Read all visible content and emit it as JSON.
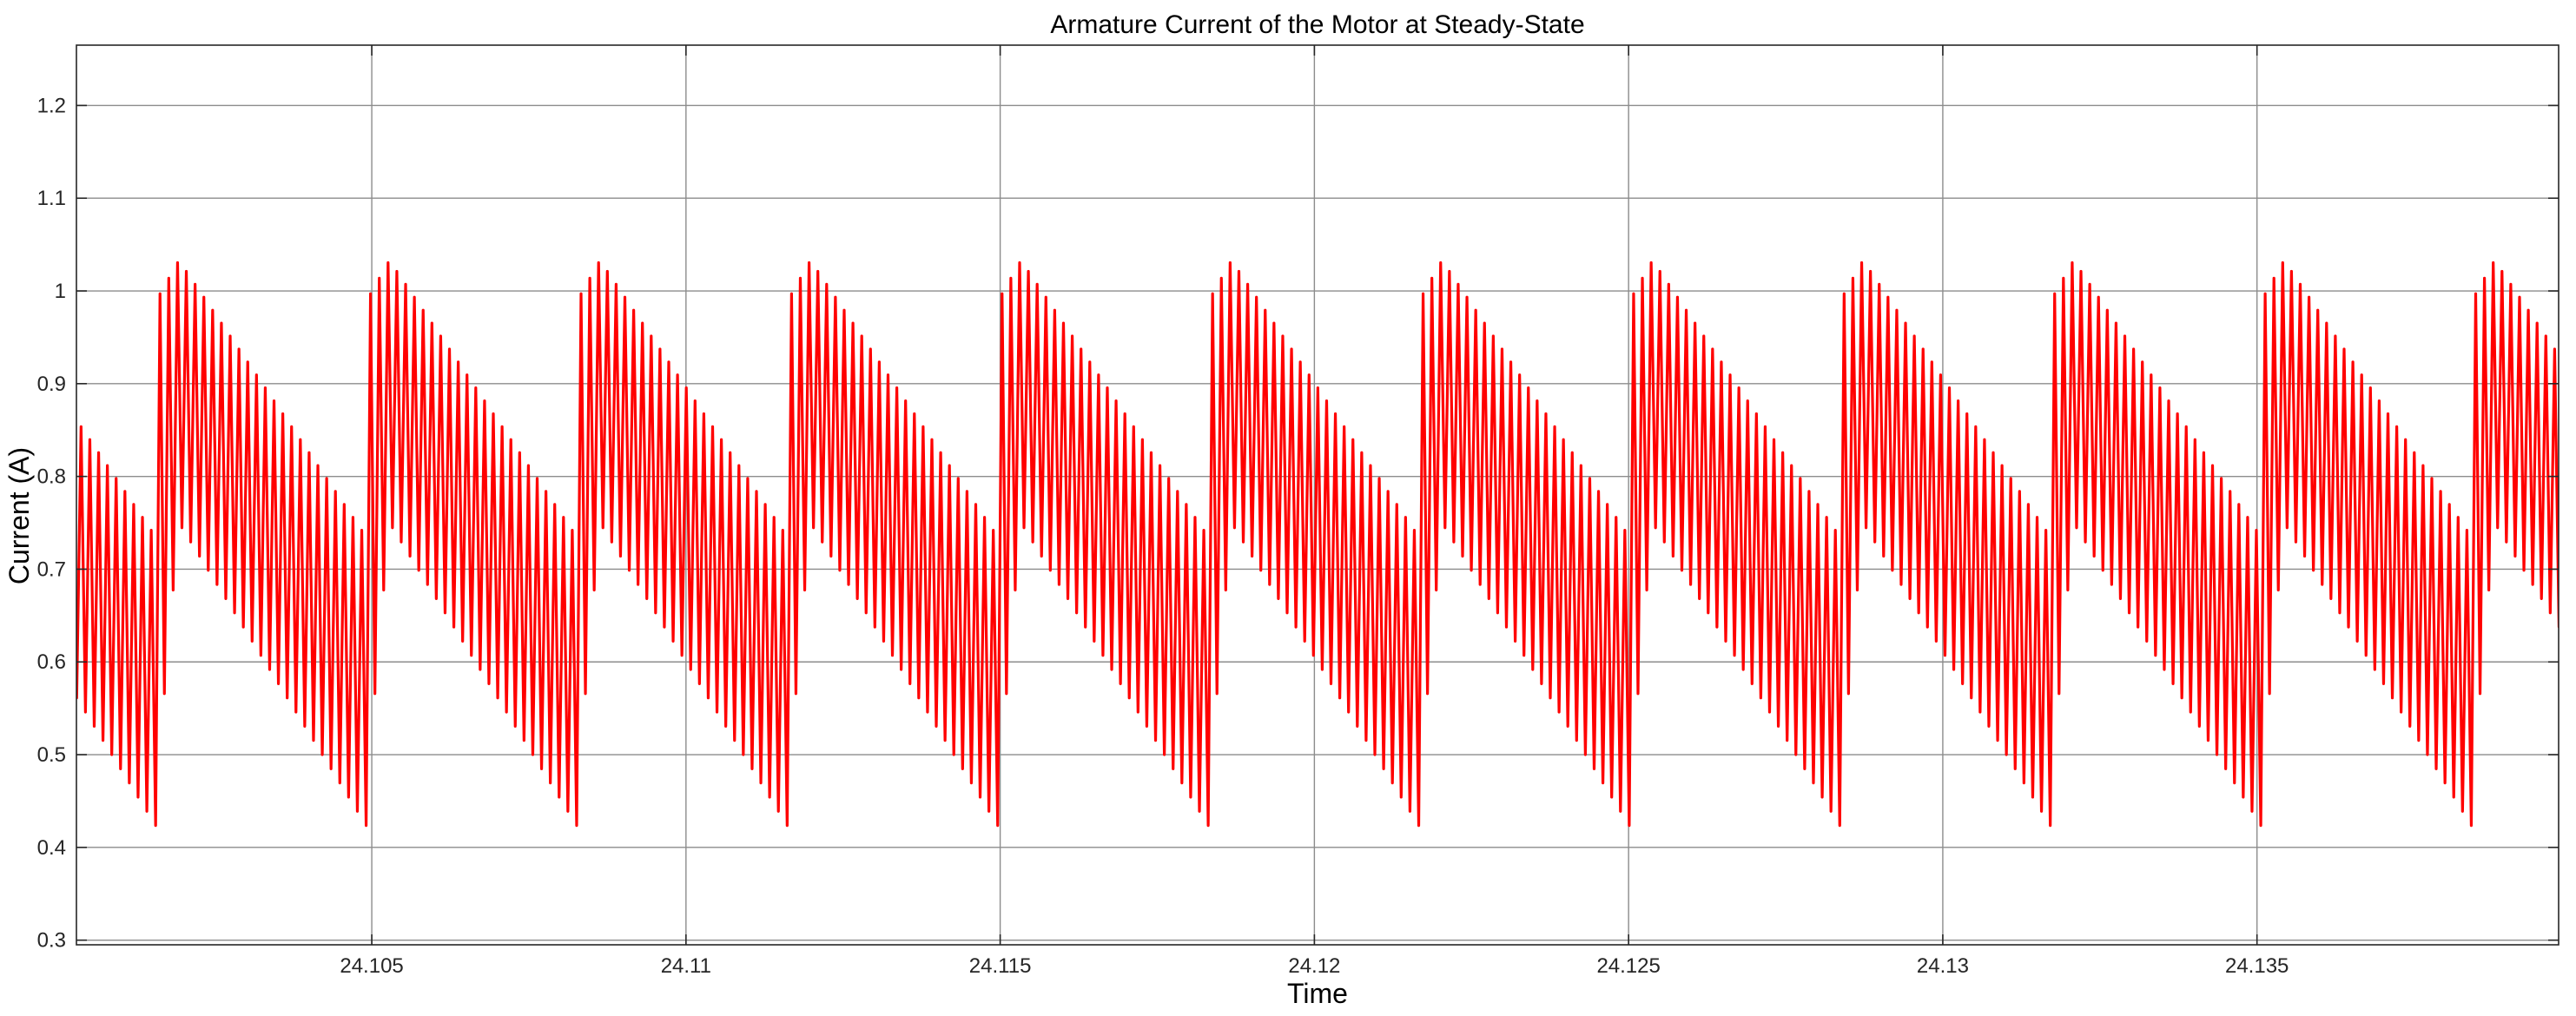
{
  "chart_data": {
    "type": "line",
    "title": "Armature Current of the Motor at Steady-State",
    "xlabel": "Time",
    "ylabel": "Current (A)",
    "xlim": [
      24.1003,
      24.1398
    ],
    "ylim": [
      0.295,
      1.265
    ],
    "xticks": [
      24.105,
      24.11,
      24.115,
      24.12,
      24.125,
      24.13,
      24.135
    ],
    "xtick_labels": [
      "24.105",
      "24.11",
      "24.115",
      "24.12",
      "24.125",
      "24.13",
      "24.135"
    ],
    "yticks": [
      0.3,
      0.4,
      0.5,
      0.6,
      0.7,
      0.8,
      0.9,
      1,
      1.1,
      1.2
    ],
    "ytick_labels": [
      "0.3",
      "0.4",
      "0.5",
      "0.6",
      "0.7",
      "0.8",
      "0.9",
      "1",
      "1.1",
      "1.2"
    ],
    "grid": true,
    "series": [
      {
        "color": "#ff0000",
        "period": 0.00335,
        "cycles_per_period": 24,
        "first_rise_time": 24.10163,
        "upper_envelope": [
          [
            0.0,
            0.997
          ],
          [
            0.0003,
            1.033
          ],
          [
            0.00335,
            0.728
          ]
        ],
        "lower_envelope": [
          [
            0.0,
            0.51
          ],
          [
            0.0003,
            0.75
          ],
          [
            0.00335,
            0.416
          ]
        ]
      }
    ]
  },
  "colors": {
    "series": "#ff0000",
    "grid": "#8c8c8c",
    "axes": "#262626",
    "background": "#ffffff"
  }
}
